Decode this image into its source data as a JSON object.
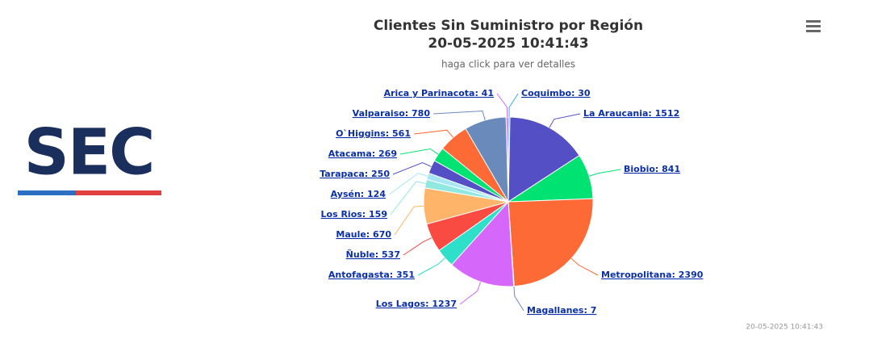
{
  "logo": "SEC",
  "chart_data": {
    "type": "pie",
    "title": "Clientes Sin Suministro por Región",
    "title_date": "20-05-2025 10:41:43",
    "subtitle": "haga click para ver detalles",
    "credits": "20-05-2025 10:41:43",
    "categories": [
      "Coquimbo",
      "La Araucania",
      "Biobio",
      "Metropolitana",
      "Magallanes",
      "Los Lagos",
      "Antofagasta",
      "Ñuble",
      "Maule",
      "Los Rios",
      "Aysén",
      "Tarapaca",
      "Atacama",
      "O`Higgins",
      "Valparaiso",
      "Arica y Parinacota"
    ],
    "values": [
      30,
      1512,
      841,
      2390,
      7,
      1237,
      351,
      537,
      670,
      159,
      124,
      250,
      269,
      561,
      780,
      41
    ],
    "value_labels": [
      "Coquimbo: 30",
      "La Araucania: 1512",
      "Biobio: 841",
      "Metropolitana: 2390",
      "Magallanes: 7",
      "Los Lagos: 1237",
      "Antofagasta: 351",
      "Ñuble: 537",
      "Maule: 670",
      "Los Rios: 159",
      "Aysén: 124",
      "Tarapaca: 250",
      "Atacama: 269",
      "O`Higgins: 561",
      "Valparaiso: 780",
      "Arica y Parinacota: 41"
    ],
    "colors": [
      "#2caffe",
      "#544fc5",
      "#00e272",
      "#fe6a35",
      "#6b8abc",
      "#d568fb",
      "#2ee0ca",
      "#fa4b42",
      "#feb56a",
      "#91e8e1",
      "#a6e6f5",
      "#544fc5",
      "#00e272",
      "#fe6a35",
      "#6b8abc",
      "#d568fb"
    ]
  }
}
